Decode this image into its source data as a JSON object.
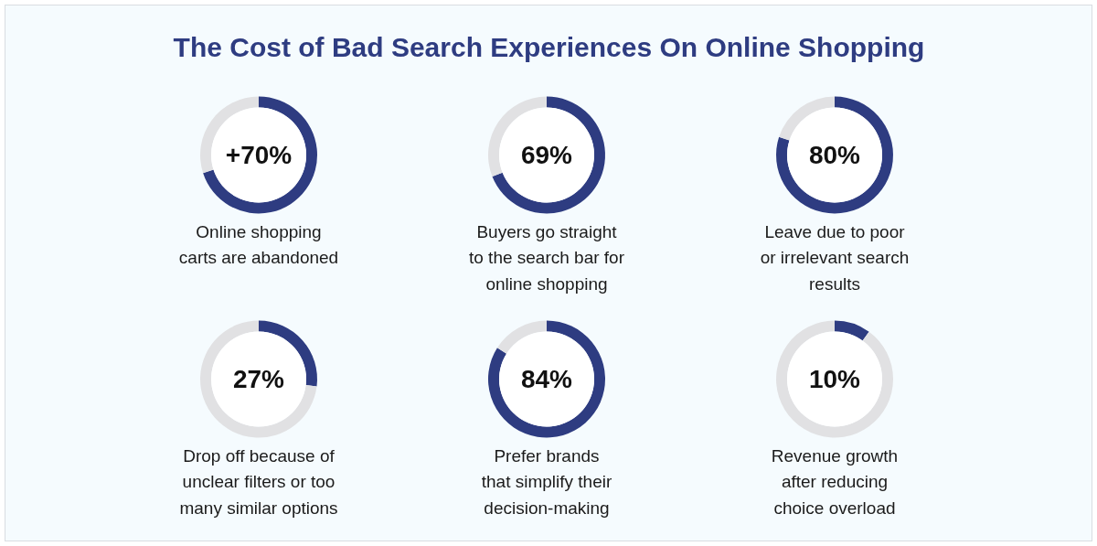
{
  "chart_data": [
    {
      "type": "donut",
      "title": "The Cost of Bad Search Experiences On Online Shopping",
      "categories": [
        null,
        null
      ],
      "values": [
        70,
        30
      ],
      "colors": [
        "#2e3c81",
        "#e1e1e3"
      ],
      "annotations": [
        "+70%",
        "Online shopping\ncarts are abandoned"
      ]
    },
    {
      "type": "donut",
      "categories": [
        null,
        null
      ],
      "values": [
        69,
        31
      ],
      "colors": [
        "#2e3c81",
        "#e1e1e3"
      ],
      "annotations": [
        "69%",
        "Buyers go straight\nto the search bar for\nonline shopping"
      ]
    },
    {
      "type": "donut",
      "categories": [
        null,
        null
      ],
      "values": [
        80,
        20
      ],
      "colors": [
        "#2e3c81",
        "#e1e1e3"
      ],
      "annotations": [
        "80%",
        "Leave due to poor\nor irrelevant search\nresults"
      ]
    },
    {
      "type": "donut",
      "categories": [
        null,
        null
      ],
      "values": [
        27,
        73
      ],
      "colors": [
        "#2e3c81",
        "#e1e1e3"
      ],
      "annotations": [
        "27%",
        "Drop off because of\nunclear filters or too\nmany similar options"
      ]
    },
    {
      "type": "donut",
      "categories": [
        null,
        null
      ],
      "values": [
        84,
        16
      ],
      "colors": [
        "#2e3c81",
        "#e1e1e3"
      ],
      "annotations": [
        "84%",
        "Prefer brands\nthat simplify their\ndecision-making"
      ]
    },
    {
      "type": "donut",
      "categories": [
        null,
        null
      ],
      "values": [
        10,
        90
      ],
      "colors": [
        "#2e3c81",
        "#e1e1e3"
      ],
      "annotations": [
        "10%",
        "Revenue growth\nafter reducing\nchoice overload"
      ]
    }
  ]
}
